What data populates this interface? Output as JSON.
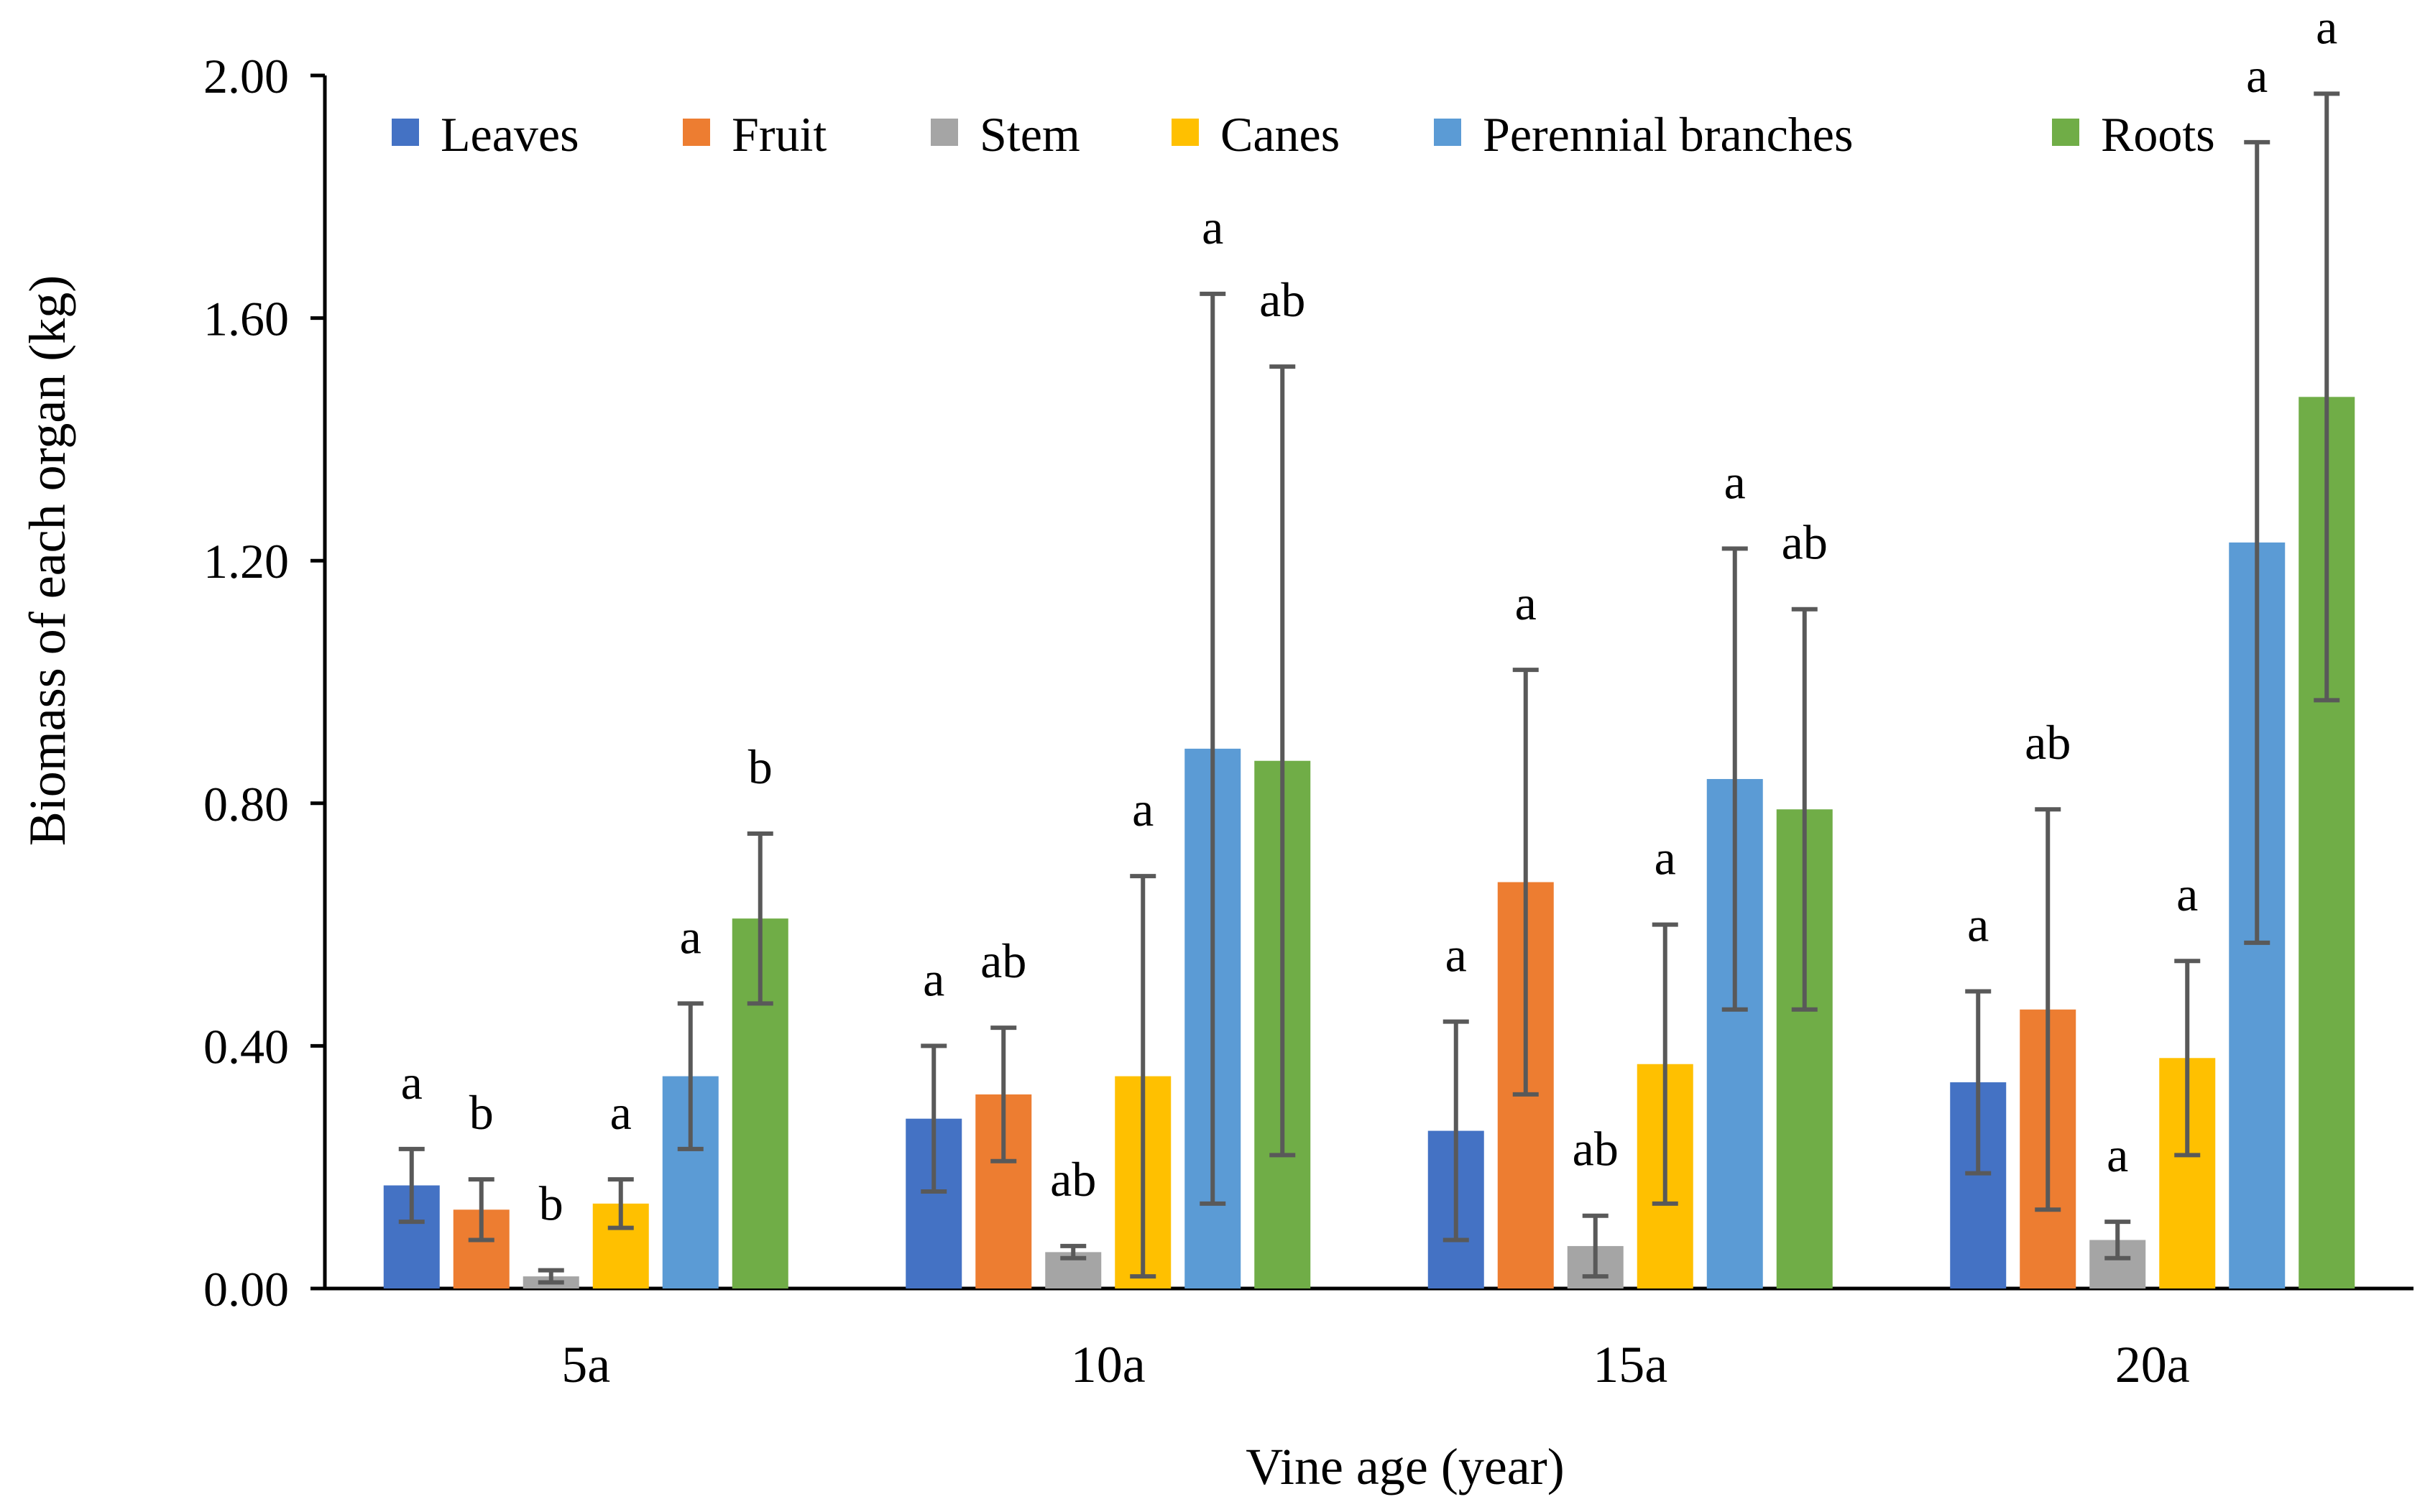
{
  "chart_data": {
    "type": "bar",
    "title": "",
    "xlabel": "Vine age (year)",
    "ylabel": "Biomass of each organ (kg)",
    "ylim": [
      0,
      2.0
    ],
    "yticks": [
      "0.00",
      "0.40",
      "0.80",
      "1.20",
      "1.60",
      "2.00"
    ],
    "grid": false,
    "legend_position": "top",
    "categories": [
      "5a",
      "10a",
      "15a",
      "20a"
    ],
    "series": [
      {
        "name": "Leaves",
        "color": "#4472C4",
        "values": [
          0.17,
          0.28,
          0.26,
          0.34
        ],
        "errors": [
          0.06,
          0.12,
          0.18,
          0.15
        ],
        "letters": [
          "a",
          "a",
          "a",
          "a"
        ]
      },
      {
        "name": "Fruit",
        "color": "#ED7D31",
        "values": [
          0.13,
          0.32,
          0.67,
          0.46
        ],
        "errors": [
          0.05,
          0.11,
          0.35,
          0.33
        ],
        "letters": [
          "b",
          "ab",
          "a",
          "ab"
        ]
      },
      {
        "name": "Stem",
        "color": "#A5A5A5",
        "values": [
          0.02,
          0.06,
          0.07,
          0.08
        ],
        "errors": [
          0.01,
          0.01,
          0.05,
          0.03
        ],
        "letters": [
          "b",
          "ab",
          "ab",
          "a"
        ]
      },
      {
        "name": "Canes",
        "color": "#FFC000",
        "values": [
          0.14,
          0.35,
          0.37,
          0.38
        ],
        "errors": [
          0.04,
          0.33,
          0.23,
          0.16
        ],
        "letters": [
          "a",
          "a",
          "a",
          "a"
        ]
      },
      {
        "name": "Perennial branches",
        "color": "#5B9BD5",
        "values": [
          0.35,
          0.89,
          0.84,
          1.23
        ],
        "errors": [
          0.12,
          0.75,
          0.38,
          0.66
        ],
        "letters": [
          "a",
          "a",
          "a",
          "a"
        ]
      },
      {
        "name": "Roots",
        "color": "#70AD47",
        "values": [
          0.61,
          0.87,
          0.79,
          1.47
        ],
        "errors": [
          0.14,
          0.65,
          0.33,
          0.5
        ],
        "letters": [
          "b",
          "ab",
          "ab",
          "a"
        ]
      }
    ],
    "errorbar_color": "#595959"
  }
}
